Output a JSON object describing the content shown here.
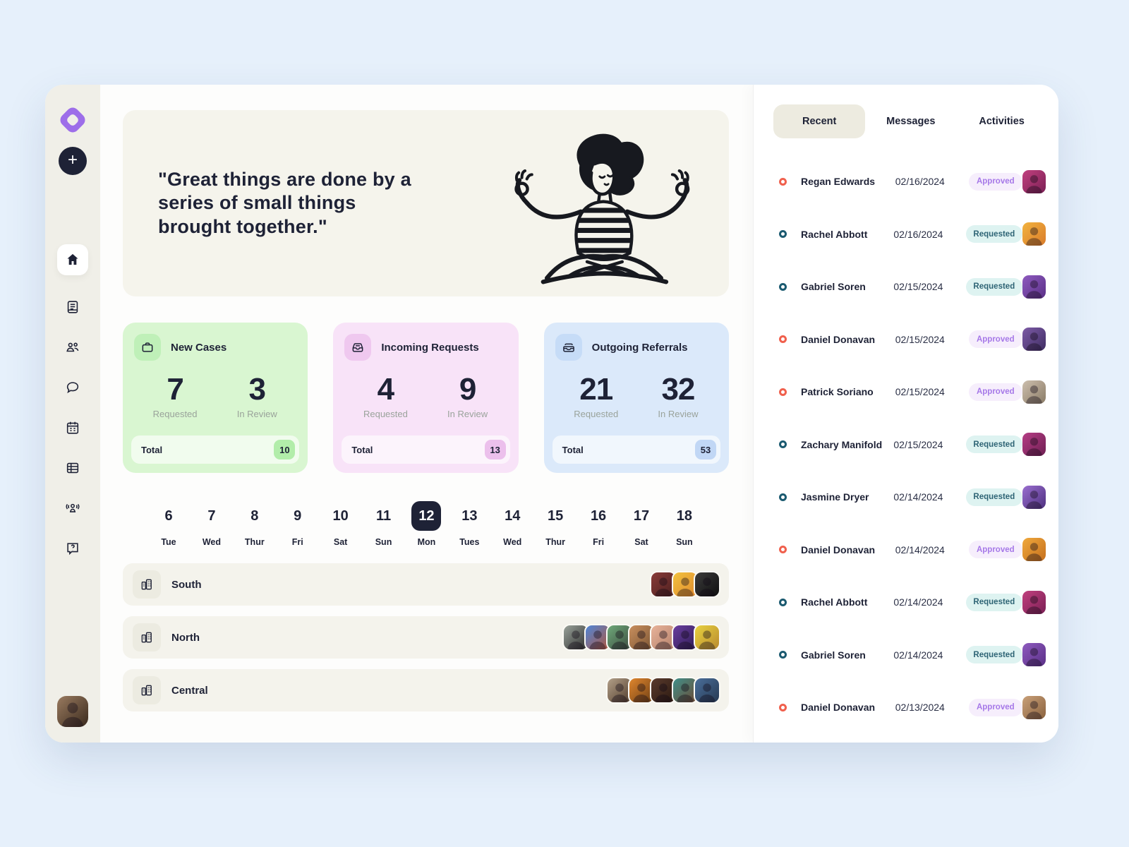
{
  "colors": {
    "page_bg": "#e6f0fb",
    "sidebar_bg": "#f0efe8",
    "main_bg": "#fdfdfc",
    "panel_bg": "#ffffff",
    "ink": "#1e2236",
    "logo": "#9d6ee9",
    "quote_bg": "#f5f4ec",
    "region_bg": "#f4f3ec",
    "region_icon_bg": "#ecebe1",
    "tab_active_bg": "#edebe0",
    "approved_bg": "#f6eefc",
    "approved_text": "#a678e8",
    "requested_bg": "#def3f1",
    "requested_text": "#2e6475",
    "approved_bullet": "#f0604d",
    "requested_bullet": "#1b5a70"
  },
  "sidebar": {
    "icons": [
      "plus-icon",
      "home-icon",
      "journal-icon",
      "users-icon",
      "chat-icon",
      "calendar-icon",
      "table-icon",
      "team-icon",
      "help-icon"
    ],
    "active_icon": "home-icon",
    "avatar_colors": [
      "#9a7b60",
      "#3a2a1d"
    ]
  },
  "quote": {
    "text": "\"Great things are done by a series of small things brought together.\""
  },
  "stats_labels": {
    "requested": "Requested",
    "in_review": "In Review",
    "total": "Total"
  },
  "stats": [
    {
      "title": "New Cases",
      "icon": "briefcase-icon",
      "requested": "7",
      "in_review": "3",
      "total": "10",
      "bg": "#d9f6d1",
      "icon_bg": "#bff0b8",
      "badge_bg": "#b2edaa"
    },
    {
      "title": "Incoming Requests",
      "icon": "inbox-icon",
      "requested": "4",
      "in_review": "9",
      "total": "13",
      "bg": "#f8e3f8",
      "icon_bg": "#efc8ef",
      "badge_bg": "#ecc0ec"
    },
    {
      "title": "Outgoing Referrals",
      "icon": "outbox-icon",
      "requested": "21",
      "in_review": "32",
      "total": "53",
      "bg": "#dbe9fa",
      "icon_bg": "#c6dcf7",
      "badge_bg": "#c1d7f5"
    }
  ],
  "calendar": {
    "days": [
      {
        "num": "6",
        "day": "Tue",
        "selected": false
      },
      {
        "num": "7",
        "day": "Wed",
        "selected": false
      },
      {
        "num": "8",
        "day": "Thur",
        "selected": false
      },
      {
        "num": "9",
        "day": "Fri",
        "selected": false
      },
      {
        "num": "10",
        "day": "Sat",
        "selected": false
      },
      {
        "num": "11",
        "day": "Sun",
        "selected": false
      },
      {
        "num": "12",
        "day": "Mon",
        "selected": true
      },
      {
        "num": "13",
        "day": "Tues",
        "selected": false
      },
      {
        "num": "14",
        "day": "Wed",
        "selected": false
      },
      {
        "num": "15",
        "day": "Thur",
        "selected": false
      },
      {
        "num": "16",
        "day": "Fri",
        "selected": false
      },
      {
        "num": "17",
        "day": "Sat",
        "selected": false
      },
      {
        "num": "18",
        "day": "Sun",
        "selected": false
      }
    ]
  },
  "regions": [
    {
      "name": "South",
      "icon": "buildings-icon",
      "avatars": [
        [
          "#8a3b39",
          "#4a1f1e"
        ],
        [
          "#f2c23f",
          "#e08a2e"
        ],
        [
          "#3b3b3b",
          "#101010"
        ]
      ]
    },
    {
      "name": "North",
      "icon": "buildings-icon",
      "avatars": [
        [
          "#9aa39b",
          "#2d2d2d"
        ],
        [
          "#4f86d8",
          "#b0543a"
        ],
        [
          "#6fa97a",
          "#3a4a3e"
        ],
        [
          "#c98f5e",
          "#7a5432"
        ],
        [
          "#e8b39a",
          "#b3806a"
        ],
        [
          "#6b3fa0",
          "#2d1b52"
        ],
        [
          "#e8d23f",
          "#b98a2e"
        ]
      ]
    },
    {
      "name": "Central",
      "icon": "buildings-icon",
      "avatars": [
        [
          "#b3a089",
          "#4f3b2a"
        ],
        [
          "#e0862e",
          "#6e3f14"
        ],
        [
          "#5a3b2e",
          "#2a180f"
        ],
        [
          "#3f8f8a",
          "#6e4a33"
        ],
        [
          "#4a6e9a",
          "#263a52"
        ]
      ]
    }
  ],
  "panel": {
    "tabs": [
      {
        "label": "Recent",
        "active": true
      },
      {
        "label": "Messages",
        "active": false
      },
      {
        "label": "Activities",
        "active": false
      }
    ],
    "people": [
      {
        "name": "Regan Edwards",
        "date": "02/16/2024",
        "status": "Approved",
        "avatar": [
          "#c2417f",
          "#7a1f54"
        ]
      },
      {
        "name": "Rachel Abbott",
        "date": "02/16/2024",
        "status": "Requested",
        "avatar": [
          "#f2b33f",
          "#d97b2a"
        ]
      },
      {
        "name": "Gabriel Soren",
        "date": "02/15/2024",
        "status": "Requested",
        "avatar": [
          "#8e5bbf",
          "#5a2f86"
        ]
      },
      {
        "name": "Daniel Donavan",
        "date": "02/15/2024",
        "status": "Approved",
        "avatar": [
          "#7d5ba6",
          "#3f2d63"
        ]
      },
      {
        "name": "Patrick Soriano",
        "date": "02/15/2024",
        "status": "Approved",
        "avatar": [
          "#cdbfae",
          "#8a7b66"
        ]
      },
      {
        "name": "Zachary Manifold",
        "date": "02/15/2024",
        "status": "Requested",
        "avatar": [
          "#b63d85",
          "#6e1f52"
        ]
      },
      {
        "name": "Jasmine Dryer",
        "date": "02/14/2024",
        "status": "Requested",
        "avatar": [
          "#9a6fd0",
          "#4d2f7e"
        ]
      },
      {
        "name": "Daniel Donavan",
        "date": "02/14/2024",
        "status": "Approved",
        "avatar": [
          "#f0a93c",
          "#c56f1d"
        ]
      },
      {
        "name": "Rachel Abbott",
        "date": "02/14/2024",
        "status": "Requested",
        "avatar": [
          "#c2417f",
          "#7a1f54"
        ]
      },
      {
        "name": "Gabriel Soren",
        "date": "02/14/2024",
        "status": "Requested",
        "avatar": [
          "#8e5bbf",
          "#5a2f86"
        ]
      },
      {
        "name": "Daniel Donavan",
        "date": "02/13/2024",
        "status": "Approved",
        "avatar": [
          "#c9a079",
          "#8a623e"
        ]
      }
    ]
  }
}
